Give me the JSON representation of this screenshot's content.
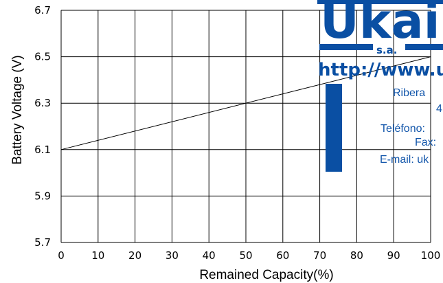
{
  "chart_data": {
    "type": "line",
    "title": "",
    "xlabel": "Remained Capacity(%)",
    "ylabel": "Battery Voltage (V)",
    "xlim": [
      0,
      100
    ],
    "ylim": [
      5.7,
      6.7
    ],
    "x_ticks": [
      "0",
      "10",
      "20",
      "30",
      "40",
      "50",
      "60",
      "70",
      "80",
      "90",
      "100"
    ],
    "y_ticks": [
      "6.7",
      "6.5",
      "6.3",
      "6.1",
      "5.9",
      "5.7"
    ],
    "grid": true,
    "series": [
      {
        "x": [
          0,
          100
        ],
        "y": [
          6.1,
          6.5
        ]
      }
    ]
  },
  "watermark": {
    "logo_text": "Ukai",
    "sub_text": "s.a.",
    "url_text": "http://www.u",
    "lines": [
      "Ribera",
      "4",
      "Teléfono:",
      "Fax:",
      "E-mail:  uk"
    ],
    "color": "#0a4fa3"
  }
}
